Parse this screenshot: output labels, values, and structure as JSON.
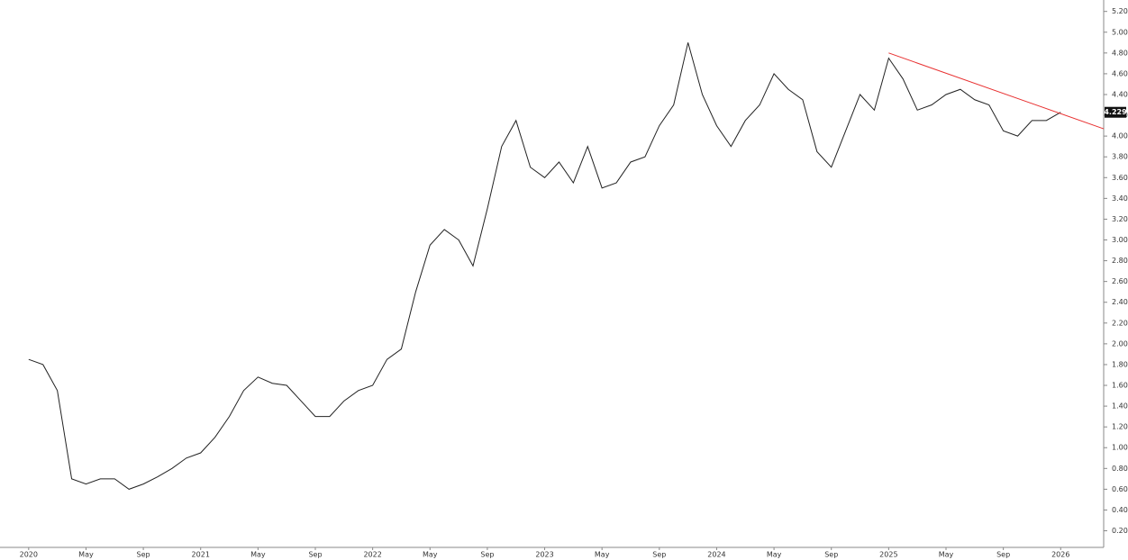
{
  "chart_data": {
    "type": "line",
    "x": [
      "2020-01",
      "2020-02",
      "2020-03",
      "2020-04",
      "2020-05",
      "2020-06",
      "2020-07",
      "2020-08",
      "2020-09",
      "2020-10",
      "2020-11",
      "2020-12",
      "2021-01",
      "2021-02",
      "2021-03",
      "2021-04",
      "2021-05",
      "2021-06",
      "2021-07",
      "2021-08",
      "2021-09",
      "2021-10",
      "2021-11",
      "2021-12",
      "2022-01",
      "2022-02",
      "2022-03",
      "2022-04",
      "2022-05",
      "2022-06",
      "2022-07",
      "2022-08",
      "2022-09",
      "2022-10",
      "2022-11",
      "2022-12",
      "2023-01",
      "2023-02",
      "2023-03",
      "2023-04",
      "2023-05",
      "2023-06",
      "2023-07",
      "2023-08",
      "2023-09",
      "2023-10",
      "2023-11",
      "2023-12",
      "2024-01",
      "2024-02",
      "2024-03",
      "2024-04",
      "2024-05",
      "2024-06",
      "2024-07",
      "2024-08",
      "2024-09",
      "2024-10",
      "2024-11",
      "2024-12",
      "2025-01",
      "2025-02",
      "2025-03",
      "2025-04",
      "2025-05",
      "2025-06",
      "2025-07",
      "2025-08",
      "2025-09",
      "2025-10",
      "2025-11",
      "2025-12",
      "2026-01"
    ],
    "series": [
      {
        "color": "#222222",
        "values": [
          1.85,
          1.8,
          1.55,
          0.7,
          0.65,
          0.7,
          0.7,
          0.6,
          0.65,
          0.72,
          0.8,
          0.9,
          0.95,
          1.1,
          1.3,
          1.55,
          1.68,
          1.62,
          1.6,
          1.45,
          1.3,
          1.3,
          1.45,
          1.55,
          1.6,
          1.85,
          1.95,
          2.5,
          2.95,
          3.1,
          3.0,
          2.75,
          3.3,
          3.9,
          4.15,
          3.7,
          3.6,
          3.75,
          3.55,
          3.9,
          3.5,
          3.55,
          3.75,
          3.8,
          4.1,
          4.3,
          4.9,
          4.4,
          4.1,
          3.9,
          4.15,
          4.3,
          4.6,
          4.45,
          4.35,
          3.85,
          3.7,
          4.05,
          4.4,
          4.25,
          4.75,
          4.55,
          4.25,
          4.3,
          4.4,
          4.45,
          4.35,
          4.3,
          4.05,
          4.0,
          4.15,
          4.15,
          4.229
        ]
      }
    ],
    "trendline": {
      "x": [
        "2025-01",
        "2026-04"
      ],
      "values": [
        4.8,
        4.07
      ],
      "color": "#e83030"
    },
    "xlim": [
      "2019-11",
      "2026-04"
    ],
    "xticks": [
      {
        "value": "2020-01",
        "label": "2020"
      },
      {
        "value": "2020-05",
        "label": "May"
      },
      {
        "value": "2020-09",
        "label": "Sep"
      },
      {
        "value": "2021-01",
        "label": "2021"
      },
      {
        "value": "2021-05",
        "label": "May"
      },
      {
        "value": "2021-09",
        "label": "Sep"
      },
      {
        "value": "2022-01",
        "label": "2022"
      },
      {
        "value": "2022-05",
        "label": "May"
      },
      {
        "value": "2022-09",
        "label": "Sep"
      },
      {
        "value": "2023-01",
        "label": "2023"
      },
      {
        "value": "2023-05",
        "label": "May"
      },
      {
        "value": "2023-09",
        "label": "Sep"
      },
      {
        "value": "2024-01",
        "label": "2024"
      },
      {
        "value": "2024-05",
        "label": "May"
      },
      {
        "value": "2024-09",
        "label": "Sep"
      },
      {
        "value": "2025-01",
        "label": "2025"
      },
      {
        "value": "2025-05",
        "label": "May"
      },
      {
        "value": "2025-09",
        "label": "Sep"
      },
      {
        "value": "2026-01",
        "label": "2026"
      }
    ],
    "ylim": [
      0.04,
      5.31
    ],
    "yticks": [
      {
        "value": 0.2,
        "label": "0.200"
      },
      {
        "value": 0.4,
        "label": "0.400"
      },
      {
        "value": 0.6,
        "label": "0.600"
      },
      {
        "value": 0.8,
        "label": "0.800"
      },
      {
        "value": 1.0,
        "label": "1.000"
      },
      {
        "value": 1.2,
        "label": "1.200"
      },
      {
        "value": 1.4,
        "label": "1.400"
      },
      {
        "value": 1.6,
        "label": "1.600"
      },
      {
        "value": 1.8,
        "label": "1.800"
      },
      {
        "value": 2.0,
        "label": "2.000"
      },
      {
        "value": 2.2,
        "label": "2.200"
      },
      {
        "value": 2.4,
        "label": "2.400"
      },
      {
        "value": 2.6,
        "label": "2.600"
      },
      {
        "value": 2.8,
        "label": "2.800"
      },
      {
        "value": 3.0,
        "label": "3.000"
      },
      {
        "value": 3.2,
        "label": "3.200"
      },
      {
        "value": 3.4,
        "label": "3.400"
      },
      {
        "value": 3.6,
        "label": "3.600"
      },
      {
        "value": 3.8,
        "label": "3.800"
      },
      {
        "value": 4.0,
        "label": "4.000"
      },
      {
        "value": 4.2,
        "label": "4.200"
      },
      {
        "value": 4.4,
        "label": "4.400"
      },
      {
        "value": 4.6,
        "label": "4.600"
      },
      {
        "value": 4.8,
        "label": "4.800"
      },
      {
        "value": 5.0,
        "label": "5.000"
      },
      {
        "value": 5.2,
        "label": "5.200"
      }
    ],
    "grid": false
  }
}
